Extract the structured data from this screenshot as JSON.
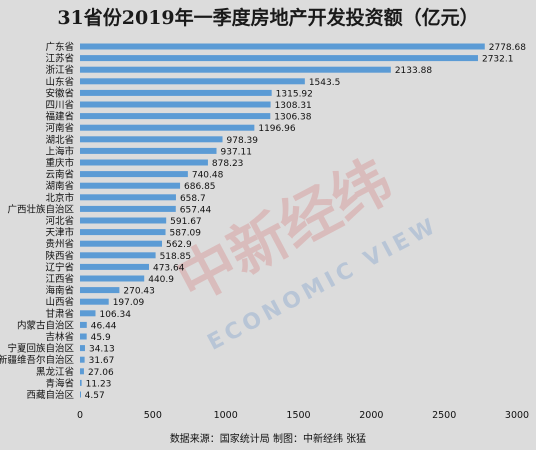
{
  "watermark": {
    "cn": "中新经纬",
    "en": "ECONOMIC VIEW"
  },
  "colors": {
    "bar": "#5b9bd5",
    "background": "#dcdcdc",
    "grid": "#bfbfbf"
  },
  "source": "数据来源：国家统计局  制图：中新经纬  张猛",
  "chart_data": {
    "type": "bar",
    "orientation": "horizontal",
    "title": "31省份2019年一季度房地产开发投资额（亿元）",
    "xlim": [
      0,
      3000
    ],
    "xticks": [
      0,
      500,
      1000,
      1500,
      2000,
      2500,
      3000
    ],
    "grid": false,
    "categories": [
      "广东省",
      "江苏省",
      "浙江省",
      "山东省",
      "安徽省",
      "四川省",
      "福建省",
      "河南省",
      "湖北省",
      "上海市",
      "重庆市",
      "云南省",
      "湖南省",
      "北京市",
      "广西壮族自治区",
      "河北省",
      "天津市",
      "贵州省",
      "陕西省",
      "辽宁省",
      "江西省",
      "海南省",
      "山西省",
      "甘肃省",
      "内蒙古自治区",
      "吉林省",
      "宁夏回族自治区",
      "新疆维吾尔自治区",
      "黑龙江省",
      "青海省",
      "西藏自治区"
    ],
    "values": [
      2778.68,
      2732.1,
      2133.88,
      1543.5,
      1315.92,
      1308.31,
      1306.38,
      1196.96,
      978.39,
      937.11,
      878.23,
      740.48,
      686.85,
      658.7,
      657.44,
      591.67,
      587.09,
      562.9,
      518.85,
      473.64,
      440.9,
      270.43,
      197.09,
      106.34,
      46.44,
      45.9,
      34.13,
      31.67,
      27.06,
      11.23,
      4.57
    ],
    "value_labels": [
      "2778.68",
      "2732.1",
      "2133.88",
      "1543.5",
      "1315.92",
      "1308.31",
      "1306.38",
      "1196.96",
      "978.39",
      "937.11",
      "878.23",
      "740.48",
      "686.85",
      "658.7",
      "657.44",
      "591.67",
      "587.09",
      "562.9",
      "518.85",
      "473.64",
      "440.9",
      "270.43",
      "197.09",
      "106.34",
      "46.44",
      "45.9",
      "34.13",
      "31.67",
      "27.06",
      "11.23",
      "4.57"
    ]
  }
}
